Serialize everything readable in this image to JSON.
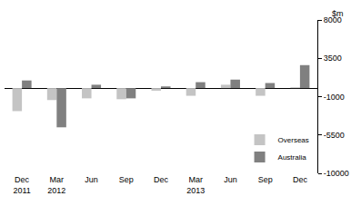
{
  "chart_data": {
    "type": "bar",
    "y_label": "$m",
    "categories": [
      "Dec 2011",
      "Mar 2012",
      "Jun",
      "Sep",
      "Dec",
      "Mar 2013",
      "Jun",
      "Sep",
      "Dec"
    ],
    "series": [
      {
        "name": "Overseas",
        "color": "#c4c4c4",
        "values": [
          -2700,
          -1400,
          -1200,
          -1300,
          -300,
          -900,
          400,
          -900,
          100
        ]
      },
      {
        "name": "Australia",
        "color": "#808080",
        "values": [
          900,
          -4600,
          400,
          -1200,
          200,
          700,
          1000,
          600,
          2700
        ]
      }
    ],
    "ylim": [
      -10000,
      8000
    ],
    "yticks": [
      8000,
      3500,
      -1000,
      -5500,
      -10000
    ],
    "grid": false,
    "legend": "bottom right"
  }
}
